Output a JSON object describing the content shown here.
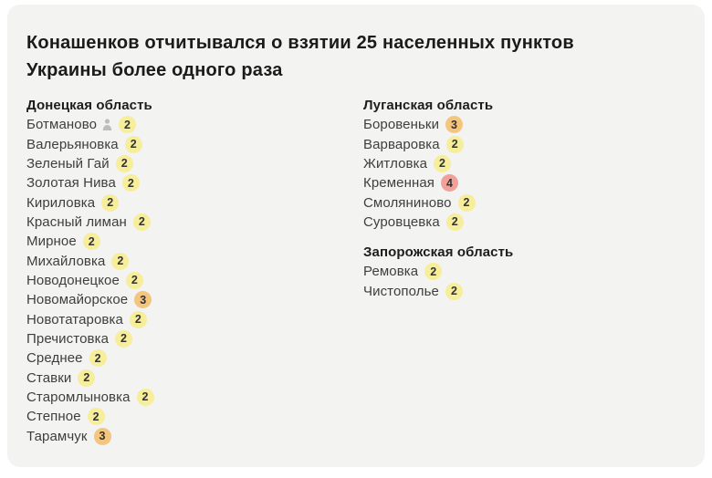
{
  "card": {
    "background": "#f3f3f1",
    "title_line1": "Конашенков отчитывался о взятии 25 населенных пунктов",
    "title_line2": "Украины более одного раза"
  },
  "badge_colors": {
    "2": "#f6ee9a",
    "3": "#f4c57c",
    "4": "#f2a19a"
  },
  "badge_text_color": "#333333",
  "icon_color": "#bdbdb9",
  "columns": [
    {
      "sections": [
        {
          "header": "Донецкая область",
          "items": [
            {
              "name": "Ботманово",
              "count": 2,
              "icon": "person-icon"
            },
            {
              "name": "Валерьяновка",
              "count": 2
            },
            {
              "name": "Зеленый Гай",
              "count": 2
            },
            {
              "name": "Золотая Нива",
              "count": 2
            },
            {
              "name": "Кириловка",
              "count": 2
            },
            {
              "name": "Красный лиман",
              "count": 2
            },
            {
              "name": "Мирное",
              "count": 2
            },
            {
              "name": "Михайловка",
              "count": 2
            },
            {
              "name": "Новодонецкое",
              "count": 2
            },
            {
              "name": "Новомайорское",
              "count": 3
            },
            {
              "name": "Новотатаровка",
              "count": 2
            },
            {
              "name": "Пречистовка",
              "count": 2
            },
            {
              "name": "Среднее",
              "count": 2
            },
            {
              "name": "Ставки",
              "count": 2
            },
            {
              "name": "Старомлыновка",
              "count": 2
            },
            {
              "name": "Степное",
              "count": 2
            },
            {
              "name": "Тарамчук",
              "count": 3
            }
          ]
        }
      ]
    },
    {
      "sections": [
        {
          "header": "Луганская область",
          "items": [
            {
              "name": "Боровеньки",
              "count": 3
            },
            {
              "name": "Варваровка",
              "count": 2
            },
            {
              "name": "Житловка",
              "count": 2
            },
            {
              "name": "Кременная",
              "count": 4
            },
            {
              "name": "Смоляниново",
              "count": 2
            },
            {
              "name": "Суровцевка",
              "count": 2
            }
          ]
        },
        {
          "header": "Запорожская область",
          "items": [
            {
              "name": "Ремовка",
              "count": 2
            },
            {
              "name": "Чистополье",
              "count": 2
            }
          ]
        }
      ]
    }
  ]
}
